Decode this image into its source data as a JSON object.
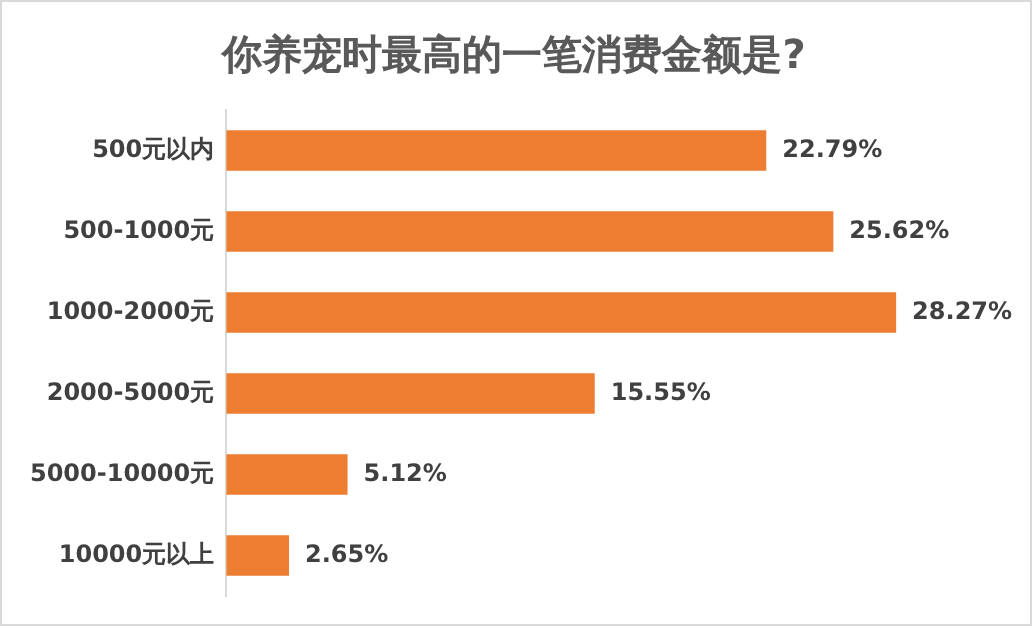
{
  "chart_data": {
    "type": "bar",
    "orientation": "horizontal",
    "title": "你养宠时最高的一笔消费金额是?",
    "categories": [
      "500元以内",
      "500-1000元",
      "1000-2000元",
      "2000-5000元",
      "5000-10000元",
      "10000元以上"
    ],
    "values": [
      22.79,
      25.62,
      28.27,
      15.55,
      5.12,
      2.65
    ],
    "value_labels": [
      "22.79%",
      "25.62%",
      "28.27%",
      "15.55%",
      "5.12%",
      "2.65%"
    ],
    "color": "#ed7d31",
    "legend": false
  }
}
